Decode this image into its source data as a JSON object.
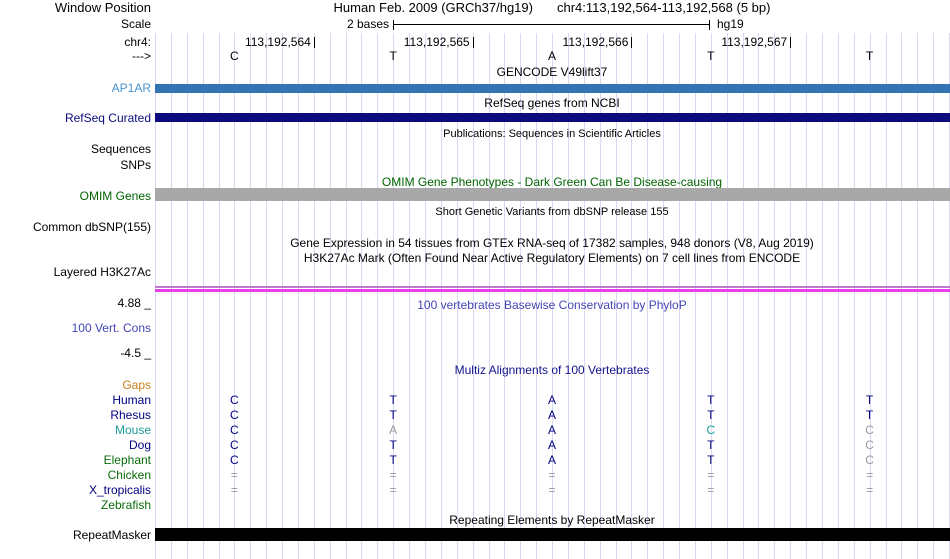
{
  "colors": {
    "grid": "#d8d8f0",
    "navy": "#000080",
    "gray_base": "#999999",
    "teal": "#1b9b9b",
    "green": "#0b6b0b",
    "gencode_label": "#4a93cc",
    "gencode_bar": "#3474b4",
    "refseq": "#0c0c7e",
    "omim_bar": "#a8a8a8",
    "omim_green": "#006400",
    "phylop_blue": "#4545b5",
    "multiz_navy": "#13138a",
    "gaps_orange": "#c9801f",
    "h3k27ac_violet": "#c07ad0",
    "h3k27ac_magenta": "#e93de9",
    "repeat_black": "#000000"
  },
  "header": {
    "window_position_label": "Window Position",
    "assembly": "Human Feb. 2009 (GRCh37/hg19)",
    "position": "chr4:113,192,564-113,192,568 (5 bp)",
    "scale_label": "Scale",
    "scale_value": "2 bases",
    "scale_assembly": "hg19",
    "chrom_label": "chr4:",
    "coordinates": [
      "113,192,564",
      "113,192,565",
      "113,192,566",
      "113,192,567"
    ],
    "strand_label": "--->",
    "ruler_bases": [
      "C",
      "T",
      "A",
      "T",
      "T"
    ]
  },
  "tracks": {
    "gencode": {
      "title": "GENCODE V49lift37",
      "item": "AP1AR"
    },
    "refseq": {
      "title": "RefSeq genes from NCBI",
      "label": "RefSeq Curated"
    },
    "publications": {
      "title": "Publications: Sequences in Scientific Articles",
      "sequences_label": "Sequences",
      "snps_label": "SNPs"
    },
    "omim": {
      "title": "OMIM Gene Phenotypes - Dark Green Can Be Disease-causing",
      "label": "OMIM Genes"
    },
    "dbsnp": {
      "title": "Short Genetic Variants from dbSNP release 155",
      "label": "Common dbSNP(155)"
    },
    "gtex": {
      "title": "Gene Expression in 54 tissues from GTEx RNA-seq of 17382 samples, 948 donors (V8, Aug 2019)"
    },
    "h3k27ac": {
      "title": "H3K27Ac Mark (Often Found Near Active Regulatory Elements) on 7 cell lines from ENCODE",
      "label": "Layered H3K27Ac",
      "max_value": "4.88 _"
    },
    "conservation": {
      "title": "100 vertebrates Basewise Conservation by PhyloP",
      "label": "100 Vert. Cons",
      "min_value": "-4.5 _"
    },
    "multiz": {
      "title": "Multiz Alignments of 100 Vertebrates",
      "gaps_label": "Gaps",
      "rows": [
        {
          "name": "Human",
          "name_color": "#000080",
          "cells": [
            [
              "C",
              "#000080"
            ],
            [
              "T",
              "#000080"
            ],
            [
              "A",
              "#000080"
            ],
            [
              "T",
              "#000080"
            ],
            [
              "T",
              "#000080"
            ]
          ]
        },
        {
          "name": "Rhesus",
          "name_color": "#000080",
          "cells": [
            [
              "C",
              "#000080"
            ],
            [
              "T",
              "#000080"
            ],
            [
              "A",
              "#000080"
            ],
            [
              "T",
              "#000080"
            ],
            [
              "T",
              "#000080"
            ]
          ]
        },
        {
          "name": "Mouse",
          "name_color": "#1b9b9b",
          "cells": [
            [
              "C",
              "#000080"
            ],
            [
              "A",
              "#999999"
            ],
            [
              "A",
              "#000080"
            ],
            [
              "C",
              "#1b9b9b"
            ],
            [
              "C",
              "#999999"
            ]
          ]
        },
        {
          "name": "Dog",
          "name_color": "#000080",
          "cells": [
            [
              "C",
              "#000080"
            ],
            [
              "T",
              "#000080"
            ],
            [
              "A",
              "#000080"
            ],
            [
              "T",
              "#000080"
            ],
            [
              "C",
              "#999999"
            ]
          ]
        },
        {
          "name": "Elephant",
          "name_color": "#0b6b0b",
          "cells": [
            [
              "C",
              "#000080"
            ],
            [
              "T",
              "#000080"
            ],
            [
              "A",
              "#000080"
            ],
            [
              "T",
              "#000080"
            ],
            [
              "C",
              "#999999"
            ]
          ]
        },
        {
          "name": "Chicken",
          "name_color": "#0b6b0b",
          "cells": [
            [
              "=",
              "#999999"
            ],
            [
              "=",
              "#999999"
            ],
            [
              "=",
              "#999999"
            ],
            [
              "=",
              "#999999"
            ],
            [
              "=",
              "#999999"
            ]
          ]
        },
        {
          "name": "X_tropicalis",
          "name_color": "#000080",
          "cells": [
            [
              "=",
              "#999999"
            ],
            [
              "=",
              "#999999"
            ],
            [
              "=",
              "#999999"
            ],
            [
              "=",
              "#999999"
            ],
            [
              "=",
              "#999999"
            ]
          ]
        },
        {
          "name": "Zebrafish",
          "name_color": "#0b6b0b",
          "cells": []
        }
      ]
    },
    "repeatmasker": {
      "title": "Repeating Elements by RepeatMasker",
      "label": "RepeatMasker"
    }
  }
}
